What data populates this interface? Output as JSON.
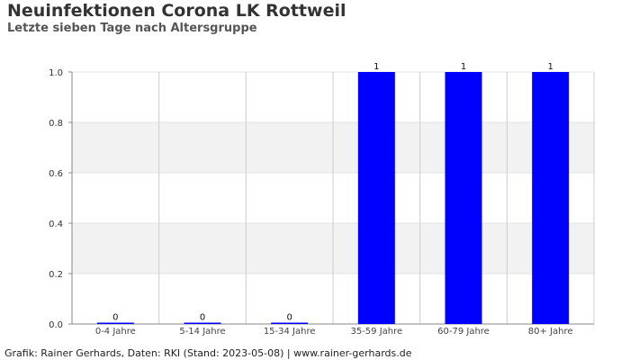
{
  "chart_data": {
    "type": "bar",
    "title": "Neuinfektionen Corona LK Rottweil",
    "subtitle": "Letzte sieben Tage nach Altersgruppe",
    "categories": [
      "0-4 Jahre",
      "5-14 Jahre",
      "15-34 Jahre",
      "35-59 Jahre",
      "60-79 Jahre",
      "80+ Jahre"
    ],
    "values": [
      0,
      0,
      0,
      1,
      1,
      1
    ],
    "data_labels": [
      "0",
      "0",
      "0",
      "1",
      "1",
      "1"
    ],
    "xlabel": "",
    "ylabel": "",
    "ylim": [
      0,
      1.0
    ],
    "yticks": [
      "0.0",
      "0.2",
      "0.4",
      "0.6",
      "0.8",
      "1.0"
    ],
    "grid": true,
    "colors": {
      "bar": "#0000ff",
      "band": "#f2f2f2",
      "grid": "#cccccc"
    }
  },
  "footer": "Grafik: Rainer Gerhards, Daten: RKI (Stand: 2023-05-08) | www.rainer-gerhards.de"
}
